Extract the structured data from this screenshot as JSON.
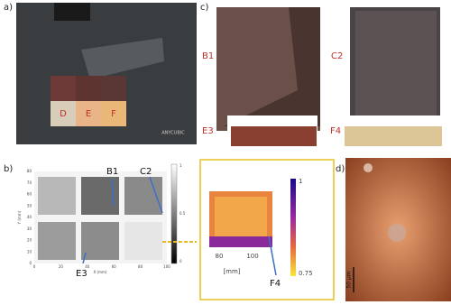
{
  "panels": {
    "a": {
      "label": "a)",
      "tiles": [
        "D",
        "E",
        "F"
      ],
      "brand": "ANYCUBIC"
    },
    "b": {
      "label": "b)",
      "y_axis": "Y (mm)",
      "x_axis": "X (mm)",
      "y_ticks": [
        "0",
        "10",
        "20",
        "30",
        "40",
        "50",
        "60",
        "70",
        "80"
      ],
      "x_ticks": [
        "0",
        "20",
        "40",
        "60",
        "80",
        "100"
      ],
      "colorbar_ticks": [
        "1",
        "0.5",
        "0"
      ],
      "callouts": [
        "B1",
        "C2",
        "E3"
      ]
    },
    "inset": {
      "colorbar_ticks": [
        "1",
        "0.75"
      ],
      "x_ticks": [
        "80",
        "100"
      ],
      "x_axis": "[mm]",
      "callout": "F4"
    },
    "c": {
      "label": "c)",
      "samples": [
        "B1",
        "C2",
        "E3",
        "F4"
      ]
    },
    "d": {
      "label": "d)",
      "scale_bar": "50 µm"
    }
  }
}
